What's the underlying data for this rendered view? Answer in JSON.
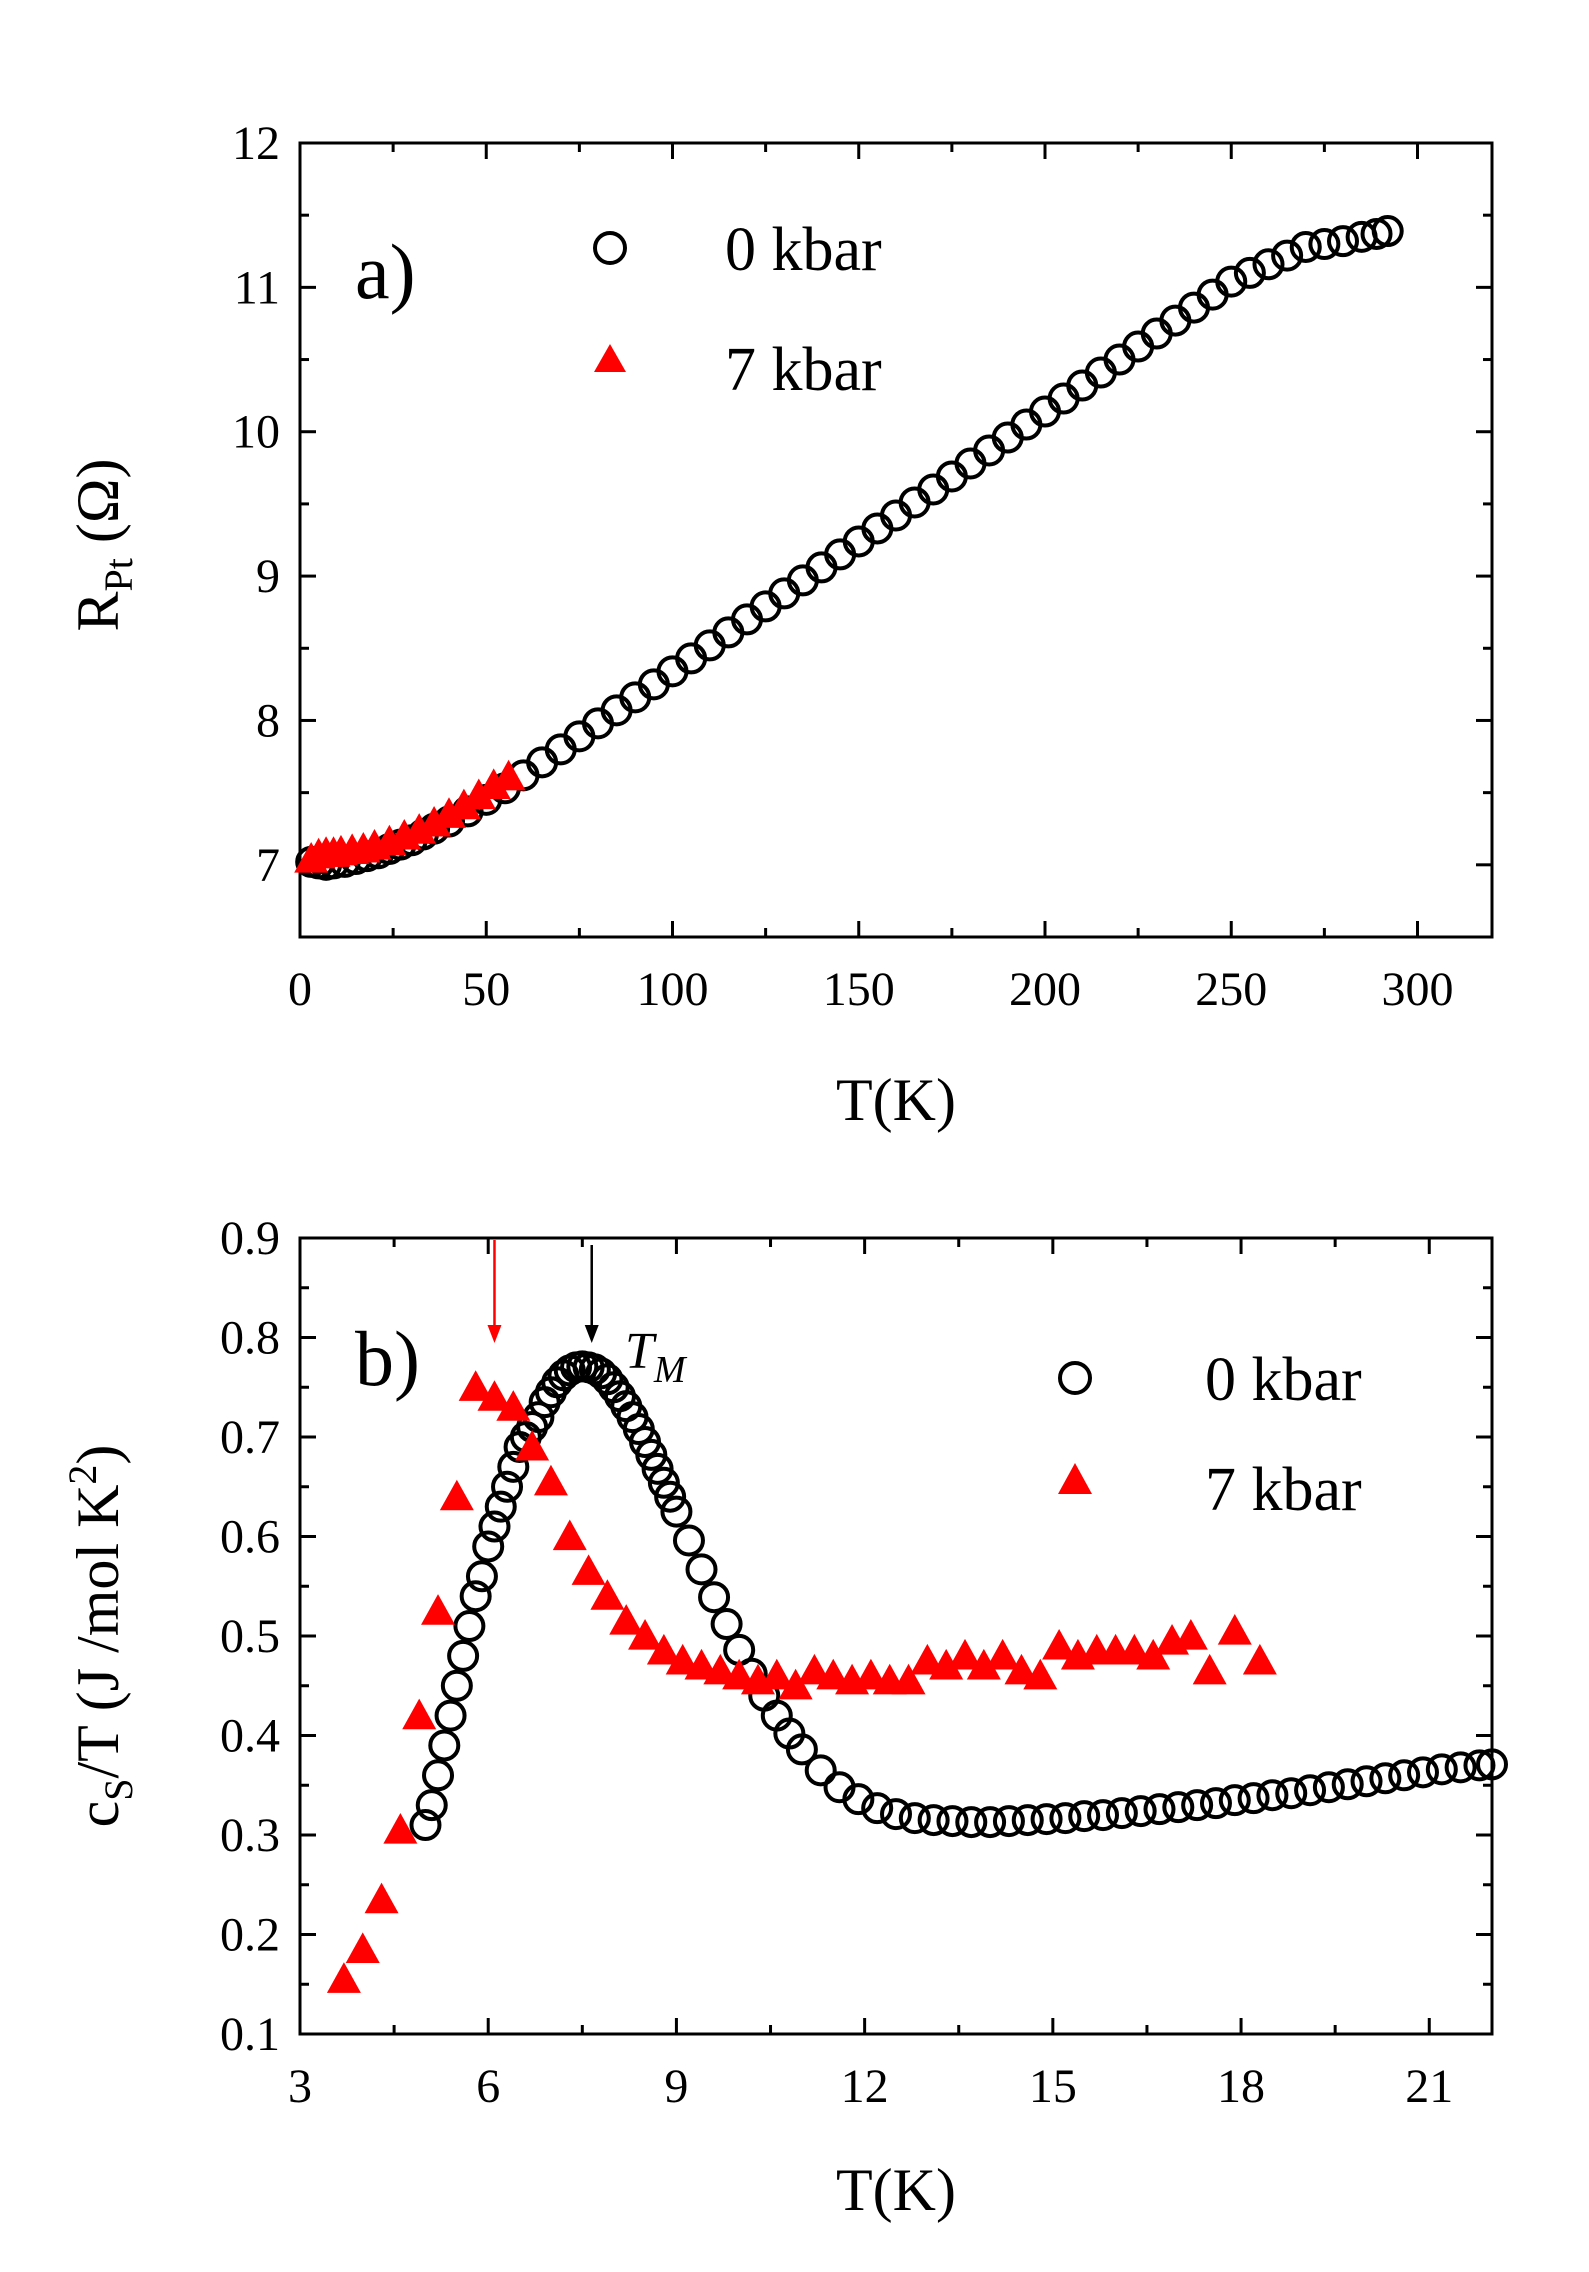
{
  "chart_data": [
    {
      "type": "scatter",
      "panel_label": "a)",
      "xlabel": "T(K)",
      "ylabel_main": "R",
      "ylabel_sub": "Pt",
      "ylabel_unit": " (Ω)",
      "xlim": [
        0,
        320
      ],
      "ylim": [
        6.5,
        12
      ],
      "xticks": [
        0,
        50,
        100,
        150,
        200,
        250,
        300
      ],
      "yticks": [
        7,
        8,
        9,
        10,
        11,
        12
      ],
      "legend": [
        "0 kbar",
        "7 kbar"
      ],
      "colors": {
        "s0": "#000000",
        "s7": "#ff0000"
      },
      "series": [
        {
          "name": "0 kbar",
          "marker": "open-circle",
          "x": [
            3,
            5,
            7,
            9,
            12,
            15,
            18,
            21,
            24,
            27,
            30,
            33,
            36,
            40,
            45,
            50,
            55,
            60,
            65,
            70,
            75,
            80,
            85,
            90,
            95,
            100,
            105,
            110,
            115,
            120,
            125,
            130,
            135,
            140,
            145,
            150,
            155,
            160,
            165,
            170,
            175,
            180,
            185,
            190,
            195,
            200,
            205,
            210,
            215,
            220,
            225,
            230,
            235,
            240,
            245,
            250,
            255,
            260,
            265,
            270,
            275,
            280,
            285,
            289,
            292
          ],
          "y": [
            7.02,
            7.01,
            7.0,
            7.01,
            7.02,
            7.04,
            7.06,
            7.08,
            7.11,
            7.14,
            7.17,
            7.21,
            7.25,
            7.3,
            7.37,
            7.45,
            7.53,
            7.62,
            7.71,
            7.8,
            7.89,
            7.98,
            8.07,
            8.16,
            8.25,
            8.34,
            8.43,
            8.52,
            8.61,
            8.7,
            8.79,
            8.88,
            8.97,
            9.06,
            9.15,
            9.24,
            9.33,
            9.42,
            9.51,
            9.6,
            9.69,
            9.78,
            9.87,
            9.96,
            10.05,
            10.14,
            10.23,
            10.32,
            10.41,
            10.5,
            10.59,
            10.68,
            10.77,
            10.86,
            10.95,
            11.04,
            11.1,
            11.16,
            11.22,
            11.28,
            11.3,
            11.32,
            11.35,
            11.37,
            11.39
          ]
        },
        {
          "name": "7 kbar",
          "marker": "filled-triangle",
          "x": [
            3,
            5,
            7,
            9,
            11,
            14,
            17,
            20,
            24,
            28,
            32,
            36,
            40,
            44,
            48,
            52,
            56
          ],
          "y": [
            7.04,
            7.07,
            7.08,
            7.08,
            7.09,
            7.1,
            7.11,
            7.13,
            7.16,
            7.2,
            7.24,
            7.29,
            7.35,
            7.41,
            7.48,
            7.55,
            7.61
          ]
        }
      ]
    },
    {
      "type": "scatter",
      "panel_label": "b)",
      "xlabel": "T(K)",
      "ylabel_main": "c",
      "ylabel_sub": "S",
      "ylabel_mid": "/T (J /mol K",
      "ylabel_sup": "2",
      "ylabel_end": ")",
      "xlim": [
        3,
        22
      ],
      "ylim": [
        0.1,
        0.9
      ],
      "xticks": [
        3,
        6,
        9,
        12,
        15,
        18,
        21
      ],
      "yticks": [
        0.1,
        0.2,
        0.3,
        0.4,
        0.5,
        0.6,
        0.7,
        0.8,
        0.9
      ],
      "annotation": "T",
      "annotation_sub": "M",
      "arrow_black_x": 7.65,
      "arrow_red_x": 6.1,
      "legend": [
        "0 kbar",
        "7 kbar"
      ],
      "colors": {
        "s0": "#000000",
        "s7": "#ff0000"
      },
      "series": [
        {
          "name": "0 kbar",
          "marker": "open-circle",
          "x": [
            5.0,
            5.1,
            5.2,
            5.3,
            5.4,
            5.5,
            5.6,
            5.7,
            5.8,
            5.9,
            6.0,
            6.1,
            6.2,
            6.3,
            6.4,
            6.5,
            6.6,
            6.7,
            6.8,
            6.9,
            7.0,
            7.1,
            7.2,
            7.3,
            7.4,
            7.5,
            7.6,
            7.7,
            7.8,
            7.9,
            8.0,
            8.1,
            8.2,
            8.3,
            8.4,
            8.5,
            8.6,
            8.7,
            8.8,
            8.9,
            9.0,
            9.2,
            9.4,
            9.6,
            9.8,
            10.0,
            10.2,
            10.4,
            10.6,
            10.8,
            11.0,
            11.3,
            11.6,
            11.9,
            12.2,
            12.5,
            12.8,
            13.1,
            13.4,
            13.7,
            14.0,
            14.3,
            14.6,
            14.9,
            15.2,
            15.5,
            15.8,
            16.1,
            16.4,
            16.7,
            17.0,
            17.3,
            17.6,
            17.9,
            18.2,
            18.5,
            18.8,
            19.1,
            19.4,
            19.7,
            20.0,
            20.3,
            20.6,
            20.9,
            21.2,
            21.5,
            21.8,
            22.0
          ],
          "y": [
            0.31,
            0.33,
            0.36,
            0.39,
            0.42,
            0.45,
            0.48,
            0.51,
            0.54,
            0.56,
            0.59,
            0.61,
            0.63,
            0.65,
            0.67,
            0.69,
            0.7,
            0.71,
            0.72,
            0.735,
            0.745,
            0.755,
            0.762,
            0.767,
            0.77,
            0.771,
            0.77,
            0.768,
            0.764,
            0.758,
            0.75,
            0.741,
            0.731,
            0.72,
            0.708,
            0.695,
            0.682,
            0.668,
            0.654,
            0.64,
            0.625,
            0.596,
            0.567,
            0.539,
            0.512,
            0.486,
            0.462,
            0.44,
            0.42,
            0.402,
            0.386,
            0.365,
            0.348,
            0.336,
            0.327,
            0.321,
            0.317,
            0.315,
            0.314,
            0.313,
            0.313,
            0.314,
            0.315,
            0.316,
            0.317,
            0.319,
            0.32,
            0.322,
            0.324,
            0.326,
            0.328,
            0.33,
            0.332,
            0.335,
            0.337,
            0.34,
            0.342,
            0.345,
            0.348,
            0.351,
            0.354,
            0.357,
            0.36,
            0.363,
            0.366,
            0.368,
            0.37,
            0.371
          ]
        },
        {
          "name": "7 kbar",
          "marker": "filled-triangle",
          "x": [
            3.7,
            4.0,
            4.3,
            4.6,
            4.9,
            5.2,
            5.5,
            5.8,
            6.1,
            6.4,
            6.7,
            7.0,
            7.3,
            7.6,
            7.9,
            8.2,
            8.5,
            8.8,
            9.1,
            9.4,
            9.7,
            10.0,
            10.3,
            10.6,
            10.9,
            11.2,
            11.5,
            11.8,
            12.1,
            12.4,
            12.7,
            13.0,
            13.3,
            13.6,
            13.9,
            14.2,
            14.5,
            14.8,
            15.1,
            15.4,
            15.7,
            16.0,
            16.3,
            16.6,
            16.9,
            17.2,
            17.5,
            17.9,
            18.3
          ],
          "y": [
            0.155,
            0.185,
            0.235,
            0.305,
            0.42,
            0.525,
            0.64,
            0.75,
            0.74,
            0.73,
            0.69,
            0.655,
            0.6,
            0.565,
            0.54,
            0.515,
            0.5,
            0.485,
            0.475,
            0.47,
            0.465,
            0.46,
            0.455,
            0.46,
            0.45,
            0.465,
            0.46,
            0.455,
            0.46,
            0.455,
            0.455,
            0.475,
            0.47,
            0.48,
            0.47,
            0.48,
            0.465,
            0.46,
            0.49,
            0.48,
            0.485,
            0.485,
            0.485,
            0.48,
            0.495,
            0.5,
            0.465,
            0.505,
            0.475
          ]
        }
      ]
    }
  ]
}
